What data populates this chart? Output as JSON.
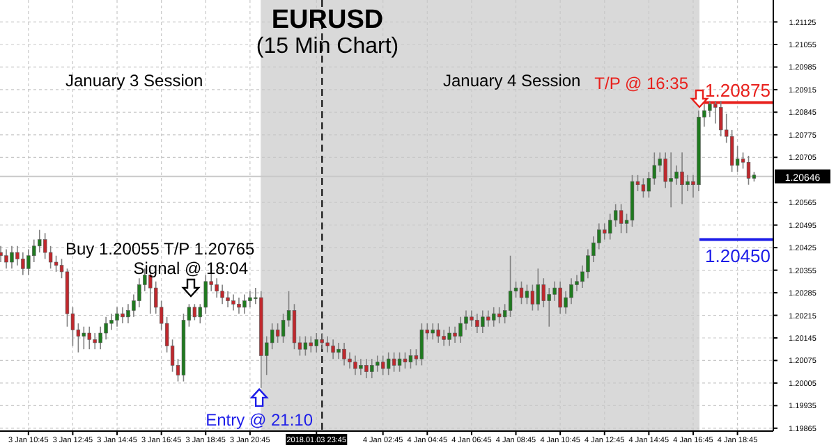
{
  "chart_data": {
    "type": "candlestick",
    "title": "EURUSD",
    "subtitle": "(15 Min Chart)",
    "x": [
      "2018-01-03T09:30",
      "2018-01-03T09:45",
      "2018-01-03T10:00",
      "2018-01-03T10:15",
      "2018-01-03T10:30",
      "2018-01-03T10:45",
      "2018-01-03T11:00",
      "2018-01-03T11:15",
      "2018-01-03T11:30",
      "2018-01-03T11:45",
      "2018-01-03T12:00",
      "2018-01-03T12:15",
      "2018-01-03T12:30",
      "2018-01-03T12:45",
      "2018-01-03T13:00",
      "2018-01-03T13:15",
      "2018-01-03T13:30",
      "2018-01-03T13:45",
      "2018-01-03T14:00",
      "2018-01-03T14:15",
      "2018-01-03T14:30",
      "2018-01-03T14:45",
      "2018-01-03T15:00",
      "2018-01-03T15:15",
      "2018-01-03T15:30",
      "2018-01-03T15:45",
      "2018-01-03T16:00",
      "2018-01-03T16:15",
      "2018-01-03T16:30",
      "2018-01-03T16:45",
      "2018-01-03T17:00",
      "2018-01-03T17:15",
      "2018-01-03T17:30",
      "2018-01-03T17:45",
      "2018-01-03T18:00",
      "2018-01-03T18:15",
      "2018-01-03T18:30",
      "2018-01-03T18:45",
      "2018-01-03T19:00",
      "2018-01-03T19:15",
      "2018-01-03T19:30",
      "2018-01-03T19:45",
      "2018-01-03T20:00",
      "2018-01-03T20:15",
      "2018-01-03T20:30",
      "2018-01-03T20:45",
      "2018-01-03T21:00",
      "2018-01-03T21:15",
      "2018-01-03T21:30",
      "2018-01-03T21:45",
      "2018-01-03T22:00",
      "2018-01-03T22:15",
      "2018-01-03T22:30",
      "2018-01-03T22:45",
      "2018-01-03T23:00",
      "2018-01-03T23:15",
      "2018-01-03T23:30",
      "2018-01-03T23:45",
      "2018-01-04T00:00",
      "2018-01-04T00:15",
      "2018-01-04T00:30",
      "2018-01-04T00:45",
      "2018-01-04T01:00",
      "2018-01-04T01:15",
      "2018-01-04T01:30",
      "2018-01-04T01:45",
      "2018-01-04T02:00",
      "2018-01-04T02:15",
      "2018-01-04T02:30",
      "2018-01-04T02:45",
      "2018-01-04T03:00",
      "2018-01-04T03:15",
      "2018-01-04T03:30",
      "2018-01-04T03:45",
      "2018-01-04T04:00",
      "2018-01-04T04:15",
      "2018-01-04T04:30",
      "2018-01-04T04:45",
      "2018-01-04T05:00",
      "2018-01-04T05:15",
      "2018-01-04T05:30",
      "2018-01-04T05:45",
      "2018-01-04T06:00",
      "2018-01-04T06:15",
      "2018-01-04T06:30",
      "2018-01-04T06:45",
      "2018-01-04T07:00",
      "2018-01-04T07:15",
      "2018-01-04T07:30",
      "2018-01-04T07:45",
      "2018-01-04T08:00",
      "2018-01-04T08:15",
      "2018-01-04T08:30",
      "2018-01-04T08:45",
      "2018-01-04T09:00",
      "2018-01-04T09:15",
      "2018-01-04T09:30",
      "2018-01-04T09:45",
      "2018-01-04T10:00",
      "2018-01-04T10:15",
      "2018-01-04T10:30",
      "2018-01-04T10:45",
      "2018-01-04T11:00",
      "2018-01-04T11:15",
      "2018-01-04T11:30",
      "2018-01-04T11:45",
      "2018-01-04T12:00",
      "2018-01-04T12:15",
      "2018-01-04T12:30",
      "2018-01-04T12:45",
      "2018-01-04T13:00",
      "2018-01-04T13:15",
      "2018-01-04T13:30",
      "2018-01-04T13:45",
      "2018-01-04T14:00",
      "2018-01-04T14:15",
      "2018-01-04T14:30",
      "2018-01-04T14:45",
      "2018-01-04T15:00",
      "2018-01-04T15:15",
      "2018-01-04T15:30",
      "2018-01-04T15:45",
      "2018-01-04T16:00",
      "2018-01-04T16:15",
      "2018-01-04T16:30",
      "2018-01-04T16:45",
      "2018-01-04T17:00",
      "2018-01-04T17:15",
      "2018-01-04T17:30",
      "2018-01-04T17:45",
      "2018-01-04T18:00",
      "2018-01-04T18:15",
      "2018-01-04T18:30",
      "2018-01-04T18:45",
      "2018-01-04T19:00",
      "2018-01-04T19:15",
      "2018-01-04T19:30"
    ],
    "ohlc": [
      [
        1.2041,
        1.2043,
        1.2038,
        1.204
      ],
      [
        1.204,
        1.2042,
        1.2036,
        1.2038
      ],
      [
        1.2038,
        1.2043,
        1.2036,
        1.2041
      ],
      [
        1.2041,
        1.2043,
        1.2037,
        1.2039
      ],
      [
        1.2039,
        1.2041,
        1.2034,
        1.2036
      ],
      [
        1.2036,
        1.2042,
        1.2034,
        1.204
      ],
      [
        1.204,
        1.2045,
        1.2038,
        1.2043
      ],
      [
        1.2043,
        1.2048,
        1.2041,
        1.2045
      ],
      [
        1.2045,
        1.2047,
        1.2039,
        1.2041
      ],
      [
        1.2041,
        1.2043,
        1.2036,
        1.2038
      ],
      [
        1.2038,
        1.204,
        1.2035,
        1.2037
      ],
      [
        1.2037,
        1.2039,
        1.2033,
        1.2035
      ],
      [
        1.2035,
        1.2036,
        1.2018,
        1.2022
      ],
      [
        1.2022,
        1.2024,
        1.2012,
        1.2017
      ],
      [
        1.2017,
        1.2019,
        1.201,
        1.2015
      ],
      [
        1.2015,
        1.2018,
        1.2011,
        1.2016
      ],
      [
        1.2016,
        1.2018,
        1.2011,
        1.2014
      ],
      [
        1.2014,
        1.2016,
        1.2011,
        1.2013
      ],
      [
        1.2013,
        1.2018,
        1.2011,
        1.2016
      ],
      [
        1.2016,
        1.2021,
        1.2014,
        1.2019
      ],
      [
        1.2019,
        1.2022,
        1.2017,
        1.202
      ],
      [
        1.202,
        1.2024,
        1.2018,
        1.2022
      ],
      [
        1.2022,
        1.2024,
        1.2019,
        1.2021
      ],
      [
        1.2021,
        1.2025,
        1.2019,
        1.2023
      ],
      [
        1.2023,
        1.2028,
        1.2021,
        1.2026
      ],
      [
        1.2026,
        1.2033,
        1.2024,
        1.2031
      ],
      [
        1.2031,
        1.2036,
        1.2029,
        1.2034
      ],
      [
        1.2034,
        1.2035,
        1.2022,
        1.203
      ],
      [
        1.203,
        1.2032,
        1.2022,
        1.2024
      ],
      [
        1.2024,
        1.2026,
        1.2017,
        1.2019
      ],
      [
        1.2019,
        1.2021,
        1.201,
        1.2012
      ],
      [
        1.2012,
        1.2014,
        1.2004,
        1.2006
      ],
      [
        1.2006,
        1.2008,
        1.2001,
        1.2003
      ],
      [
        1.2003,
        1.2022,
        1.2001,
        1.202
      ],
      [
        1.202,
        1.2025,
        1.2018,
        1.2024
      ],
      [
        1.2024,
        1.2025,
        1.202,
        1.2021
      ],
      [
        1.2021,
        1.2025,
        1.2019,
        1.2024
      ],
      [
        1.2024,
        1.2034,
        1.2022,
        1.2032
      ],
      [
        1.2032,
        1.2035,
        1.2029,
        1.2031
      ],
      [
        1.2031,
        1.2033,
        1.2027,
        1.2029
      ],
      [
        1.2029,
        1.2031,
        1.2025,
        1.2027
      ],
      [
        1.2027,
        1.2029,
        1.2024,
        1.2026
      ],
      [
        1.2026,
        1.2028,
        1.2023,
        1.2025
      ],
      [
        1.2025,
        1.2027,
        1.2022,
        1.2024
      ],
      [
        1.2024,
        1.2028,
        1.2022,
        1.2026
      ],
      [
        1.2026,
        1.2029,
        1.2024,
        1.2027
      ],
      [
        1.2027,
        1.203,
        1.2025,
        1.2027
      ],
      [
        1.2027,
        1.2029,
        1.1999,
        1.2009
      ],
      [
        1.2009,
        1.2015,
        1.2003,
        1.2013
      ],
      [
        1.2013,
        1.2019,
        1.2011,
        1.2017
      ],
      [
        1.2017,
        1.2019,
        1.2013,
        1.2015
      ],
      [
        1.2015,
        1.2022,
        1.2013,
        1.202
      ],
      [
        1.202,
        1.2029,
        1.2018,
        1.2023
      ],
      [
        1.2023,
        1.2025,
        1.2011,
        1.2013
      ],
      [
        1.2013,
        1.2015,
        1.2009,
        1.2011
      ],
      [
        1.2011,
        1.2015,
        1.2009,
        1.2013
      ],
      [
        1.2013,
        1.2015,
        1.201,
        1.2012
      ],
      [
        1.2012,
        1.2016,
        1.201,
        1.2014
      ],
      [
        1.2014,
        1.2016,
        1.2011,
        1.2013
      ],
      [
        1.2013,
        1.2015,
        1.201,
        1.2012
      ],
      [
        1.2012,
        1.2014,
        1.2008,
        1.201
      ],
      [
        1.201,
        1.2013,
        1.2008,
        1.2011
      ],
      [
        1.2011,
        1.2013,
        1.2006,
        1.2008
      ],
      [
        1.2008,
        1.201,
        1.2005,
        1.2007
      ],
      [
        1.2007,
        1.2009,
        1.2003,
        1.2005
      ],
      [
        1.2005,
        1.2008,
        1.2003,
        1.2006
      ],
      [
        1.2006,
        1.2008,
        1.2002,
        1.2004
      ],
      [
        1.2004,
        1.2008,
        1.2002,
        1.2006
      ],
      [
        1.2006,
        1.2009,
        1.2004,
        1.2007
      ],
      [
        1.2007,
        1.2009,
        1.2003,
        1.2005
      ],
      [
        1.2005,
        1.201,
        1.2003,
        1.2008
      ],
      [
        1.2008,
        1.201,
        1.2004,
        1.2006
      ],
      [
        1.2006,
        1.201,
        1.2004,
        1.2008
      ],
      [
        1.2008,
        1.201,
        1.2005,
        1.2007
      ],
      [
        1.2007,
        1.2011,
        1.2005,
        1.2009
      ],
      [
        1.2009,
        1.2011,
        1.2006,
        1.2008
      ],
      [
        1.2008,
        1.2019,
        1.2006,
        1.2017
      ],
      [
        1.2017,
        1.2019,
        1.2014,
        1.2016
      ],
      [
        1.2016,
        1.2019,
        1.2014,
        1.2017
      ],
      [
        1.2017,
        1.2019,
        1.2013,
        1.2015
      ],
      [
        1.2015,
        1.2017,
        1.2012,
        1.2014
      ],
      [
        1.2014,
        1.2018,
        1.2012,
        1.2016
      ],
      [
        1.2016,
        1.2018,
        1.2013,
        1.2015
      ],
      [
        1.2015,
        1.2021,
        1.2013,
        1.2019
      ],
      [
        1.2019,
        1.2023,
        1.2017,
        1.2021
      ],
      [
        1.2021,
        1.2023,
        1.2018,
        1.202
      ],
      [
        1.202,
        1.2022,
        1.2016,
        1.2018
      ],
      [
        1.2018,
        1.2023,
        1.2016,
        1.2021
      ],
      [
        1.2021,
        1.2023,
        1.2018,
        1.202
      ],
      [
        1.202,
        1.2024,
        1.2018,
        1.2022
      ],
      [
        1.2022,
        1.2024,
        1.2019,
        1.2021
      ],
      [
        1.2021,
        1.2025,
        1.2019,
        1.2023
      ],
      [
        1.2023,
        1.204,
        1.2021,
        1.2029
      ],
      [
        1.2029,
        1.2032,
        1.2027,
        1.203
      ],
      [
        1.203,
        1.2032,
        1.2025,
        1.2027
      ],
      [
        1.2027,
        1.2031,
        1.2025,
        1.2029
      ],
      [
        1.2029,
        1.2031,
        1.2023,
        1.2025
      ],
      [
        1.2025,
        1.2036,
        1.2023,
        1.2031
      ],
      [
        1.2031,
        1.2033,
        1.2024,
        1.2026
      ],
      [
        1.2026,
        1.203,
        1.2018,
        1.2028
      ],
      [
        1.2028,
        1.2032,
        1.2026,
        1.203
      ],
      [
        1.203,
        1.2032,
        1.2022,
        1.2024
      ],
      [
        1.2024,
        1.2029,
        1.2022,
        1.2027
      ],
      [
        1.2027,
        1.2033,
        1.2025,
        1.2031
      ],
      [
        1.2031,
        1.2034,
        1.2029,
        1.2032
      ],
      [
        1.2032,
        1.2037,
        1.203,
        1.2035
      ],
      [
        1.2035,
        1.2042,
        1.2033,
        1.204
      ],
      [
        1.204,
        1.2046,
        1.2038,
        1.2044
      ],
      [
        1.2044,
        1.205,
        1.2042,
        1.2048
      ],
      [
        1.2048,
        1.205,
        1.2045,
        1.2047
      ],
      [
        1.2047,
        1.2053,
        1.2045,
        1.2051
      ],
      [
        1.2051,
        1.2056,
        1.2049,
        1.2054
      ],
      [
        1.2054,
        1.2056,
        1.2047,
        1.205
      ],
      [
        1.205,
        1.2053,
        1.2047,
        1.2051
      ],
      [
        1.2051,
        1.2065,
        1.2049,
        1.2063
      ],
      [
        1.2063,
        1.2065,
        1.206,
        1.2062
      ],
      [
        1.2062,
        1.2064,
        1.2058,
        1.206
      ],
      [
        1.206,
        1.2066,
        1.2058,
        1.2064
      ],
      [
        1.2064,
        1.2072,
        1.2062,
        1.2068
      ],
      [
        1.2068,
        1.2072,
        1.2066,
        1.207
      ],
      [
        1.207,
        1.2072,
        1.2061,
        1.2063
      ],
      [
        1.2063,
        1.2072,
        1.2055,
        1.2064
      ],
      [
        1.2064,
        1.2068,
        1.2062,
        1.2066
      ],
      [
        1.2066,
        1.2072,
        1.2056,
        1.2062
      ],
      [
        1.2062,
        1.2065,
        1.206,
        1.2063
      ],
      [
        1.2063,
        1.2065,
        1.2058,
        1.2062
      ],
      [
        1.2062,
        1.2085,
        1.206,
        1.2083
      ],
      [
        1.2083,
        1.2087,
        1.208,
        1.2085
      ],
      [
        1.2085,
        1.2088,
        1.2083,
        1.2087
      ],
      [
        1.2087,
        1.2088,
        1.2081,
        1.2086
      ],
      [
        1.2086,
        1.2088,
        1.2077,
        1.2079
      ],
      [
        1.2079,
        1.2084,
        1.2075,
        1.2077
      ],
      [
        1.2077,
        1.2079,
        1.2066,
        1.2068
      ],
      [
        1.2068,
        1.2074,
        1.2066,
        1.207
      ],
      [
        1.207,
        1.2072,
        1.2067,
        1.2069
      ],
      [
        1.2069,
        1.2071,
        1.2062,
        1.2064
      ],
      [
        1.2064,
        1.2066,
        1.2063,
        1.2065
      ]
    ],
    "xlim": [
      "2018-01-03T09:28",
      "2018-01-04T20:22"
    ],
    "xticks": [
      {
        "value": "2018-01-03T10:45",
        "label": "3 Jan 10:45"
      },
      {
        "value": "2018-01-03T12:45",
        "label": "3 Jan 12:45"
      },
      {
        "value": "2018-01-03T14:45",
        "label": "3 Jan 14:45"
      },
      {
        "value": "2018-01-03T16:45",
        "label": "3 Jan 16:45"
      },
      {
        "value": "2018-01-03T18:45",
        "label": "3 Jan 18:45"
      },
      {
        "value": "2018-01-03T20:45",
        "label": "3 Jan 20:45"
      },
      {
        "value": "2018-01-03T23:45",
        "label": "2018.01.03 23:45"
      },
      {
        "value": "2018-01-04T02:45",
        "label": "4 Jan 02:45"
      },
      {
        "value": "2018-01-04T04:45",
        "label": "4 Jan 04:45"
      },
      {
        "value": "2018-01-04T06:45",
        "label": "4 Jan 06:45"
      },
      {
        "value": "2018-01-04T08:45",
        "label": "4 Jan 08:45"
      },
      {
        "value": "2018-01-04T10:45",
        "label": "4 Jan 10:45"
      },
      {
        "value": "2018-01-04T12:45",
        "label": "4 Jan 12:45"
      },
      {
        "value": "2018-01-04T14:45",
        "label": "4 Jan 14:45"
      },
      {
        "value": "2018-01-04T16:45",
        "label": "4 Jan 16:45"
      },
      {
        "value": "2018-01-04T18:45",
        "label": "4 Jan 18:45"
      }
    ],
    "ylim": [
      1.19856,
      1.21193
    ],
    "yticks": [
      1.19865,
      1.19935,
      1.20005,
      1.20075,
      1.20145,
      1.20215,
      1.20285,
      1.20355,
      1.20425,
      1.20495,
      1.20565,
      1.20705,
      1.20775,
      1.20845,
      1.20915,
      1.20985,
      1.21055,
      1.21125
    ],
    "grid": true,
    "bands": [
      {
        "axis": "x",
        "from": "2018-01-03T21:14",
        "to": "2018-01-04T17:02",
        "color": "#d9d9d9"
      }
    ],
    "ref_lines": [
      {
        "axis": "y",
        "value": 1.20875,
        "label": "1.20875",
        "color": "#e8201c"
      },
      {
        "axis": "y",
        "value": 1.2045,
        "label": "1.20450",
        "color": "#1c1ce8"
      },
      {
        "axis": "y",
        "value": 1.20646,
        "label": "1.20646",
        "color": "#c8c8c8"
      },
      {
        "axis": "x",
        "value": "2018-01-04T00:00",
        "color": "#000000",
        "line_style": "dashed"
      }
    ],
    "annotations": [
      "January 3 Session",
      "January 4 Session",
      "T/P @ 16:35",
      "Buy 1.20055 T/P 1.20765",
      "Signal @ 18:04",
      {
        "text": "Entry @ 21:10",
        "x": "2018-01-03T21:10",
        "y": 1.1999
      }
    ]
  }
}
